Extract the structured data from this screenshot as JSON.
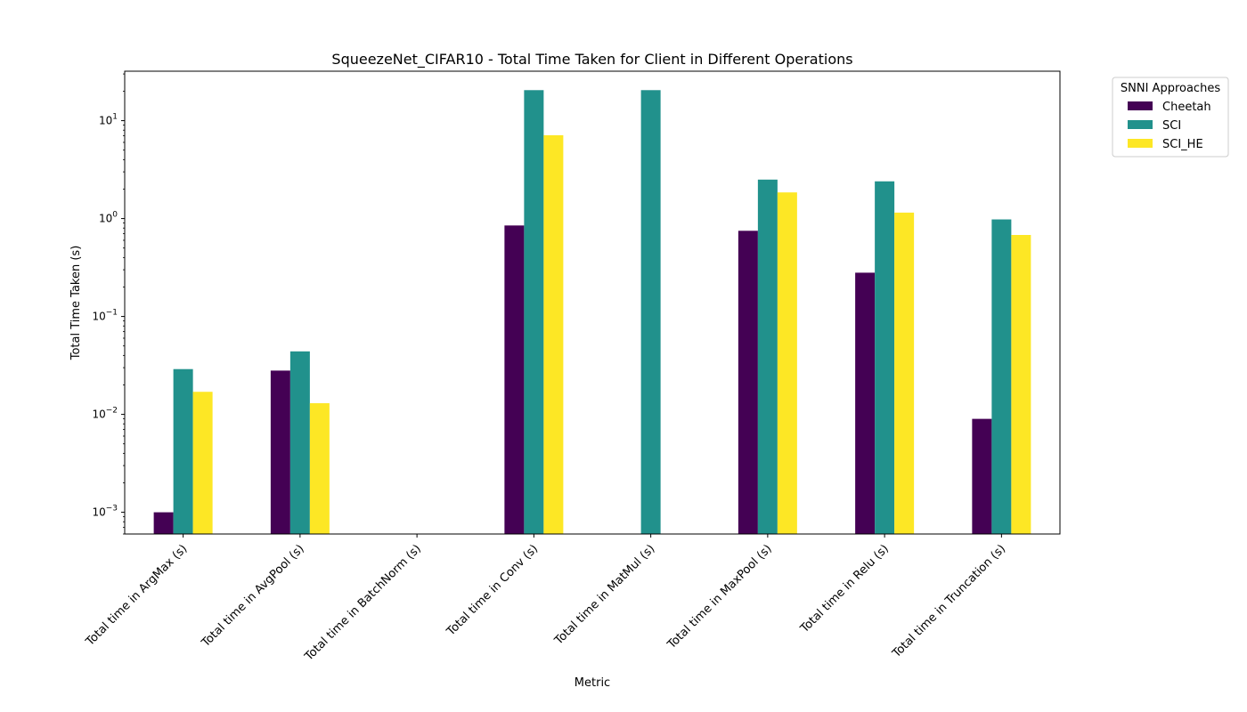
{
  "chart_data": {
    "type": "bar",
    "title": "SqueezeNet_CIFAR10 - Total Time Taken for Client in Different Operations",
    "xlabel": "Metric",
    "ylabel": "Total Time Taken (s)",
    "yscale": "log",
    "ylim": [
      0.0006,
      32
    ],
    "yticks": [
      {
        "value": 0.001,
        "base": "10",
        "exp": "−3"
      },
      {
        "value": 0.01,
        "base": "10",
        "exp": "−2"
      },
      {
        "value": 0.1,
        "base": "10",
        "exp": "−1"
      },
      {
        "value": 1,
        "base": "10",
        "exp": "0"
      },
      {
        "value": 10,
        "base": "10",
        "exp": "1"
      }
    ],
    "grid": false,
    "legend_position": "outside top-right",
    "legend_title": "SNNI Approaches",
    "categories": [
      "Total time in ArgMax (s)",
      "Total time in AvgPool (s)",
      "Total time in BatchNorm (s)",
      "Total time in Conv (s)",
      "Total time in MatMul (s)",
      "Total time in MaxPool (s)",
      "Total time in Relu (s)",
      "Total time in Truncation (s)"
    ],
    "series": [
      {
        "name": "Cheetah",
        "color": "#440154",
        "values": [
          0.001,
          0.028,
          null,
          0.85,
          null,
          0.75,
          0.28,
          0.009
        ]
      },
      {
        "name": "SCI",
        "color": "#21918c",
        "values": [
          0.029,
          0.044,
          null,
          20.5,
          20.5,
          2.5,
          2.4,
          0.98
        ]
      },
      {
        "name": "SCI_HE",
        "color": "#fde725",
        "values": [
          0.017,
          0.013,
          null,
          7.1,
          null,
          1.85,
          1.15,
          0.68
        ]
      }
    ]
  }
}
